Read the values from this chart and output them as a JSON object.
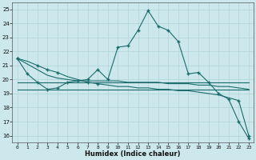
{
  "xlabel": "Humidex (Indice chaleur)",
  "bg_color": "#cde8ec",
  "grid_color": "#b0d4d8",
  "line_color": "#1a6b6b",
  "xlim": [
    -0.5,
    23.5
  ],
  "ylim": [
    15.5,
    25.5
  ],
  "yticks": [
    16,
    17,
    18,
    19,
    20,
    21,
    22,
    23,
    24,
    25
  ],
  "xticks": [
    0,
    1,
    2,
    3,
    4,
    5,
    6,
    7,
    8,
    9,
    10,
    11,
    12,
    13,
    14,
    15,
    16,
    17,
    18,
    19,
    20,
    21,
    22,
    23
  ],
  "line1_x": [
    0,
    1,
    2,
    3,
    4,
    5,
    6,
    7,
    8,
    9,
    10,
    11,
    12,
    13,
    14,
    15,
    16,
    17,
    18,
    19,
    20,
    21,
    22,
    23
  ],
  "line1_y": [
    21.5,
    20.4,
    19.8,
    19.3,
    19.4,
    19.8,
    19.9,
    20.0,
    20.7,
    20.0,
    22.3,
    22.4,
    23.5,
    24.9,
    23.8,
    23.5,
    22.7,
    20.4,
    20.5,
    19.8,
    19.0,
    18.6,
    17.0,
    15.8
  ],
  "line2_x": [
    0,
    23
  ],
  "line2_y": [
    19.8,
    19.8
  ],
  "line3_x": [
    0,
    23
  ],
  "line3_y": [
    19.3,
    19.3
  ],
  "line4_x": [
    0,
    1,
    2,
    3,
    4,
    5,
    6,
    7,
    8,
    9,
    10,
    11,
    12,
    13,
    14,
    15,
    16,
    17,
    18,
    19,
    20,
    21,
    22,
    23
  ],
  "line4_y": [
    21.5,
    21.3,
    21.0,
    20.7,
    20.5,
    20.2,
    20.0,
    19.8,
    19.7,
    19.6,
    19.5,
    19.5,
    19.4,
    19.4,
    19.3,
    19.3,
    19.2,
    19.2,
    19.1,
    19.0,
    18.9,
    18.7,
    18.5,
    16.0
  ],
  "line5_x": [
    0,
    1,
    2,
    3,
    4,
    5,
    6,
    7,
    8,
    9,
    10,
    11,
    12,
    13,
    14,
    15,
    16,
    17,
    18,
    19,
    20,
    21,
    22,
    23
  ],
  "line5_y": [
    21.5,
    21.1,
    20.7,
    20.3,
    20.1,
    20.0,
    19.9,
    19.9,
    19.9,
    19.9,
    19.9,
    19.8,
    19.8,
    19.8,
    19.8,
    19.7,
    19.7,
    19.7,
    19.6,
    19.6,
    19.5,
    19.5,
    19.4,
    19.3
  ],
  "marker1_x": [
    0,
    1,
    2,
    3,
    4,
    5,
    6,
    7,
    8,
    9,
    10,
    11,
    12,
    13,
    14,
    15,
    16,
    17,
    18,
    19,
    20,
    21,
    22,
    23
  ],
  "marker1_y": [
    21.5,
    20.4,
    19.8,
    19.3,
    19.4,
    19.8,
    19.9,
    20.0,
    20.7,
    20.0,
    22.3,
    22.4,
    23.5,
    24.9,
    23.8,
    23.5,
    22.7,
    20.4,
    20.5,
    19.8,
    19.0,
    18.6,
    17.0,
    15.8
  ],
  "marker2_x": [
    2,
    3,
    4,
    7,
    8,
    22,
    23
  ],
  "marker2_y": [
    19.8,
    19.3,
    19.5,
    19.9,
    20.0,
    18.5,
    16.0
  ]
}
